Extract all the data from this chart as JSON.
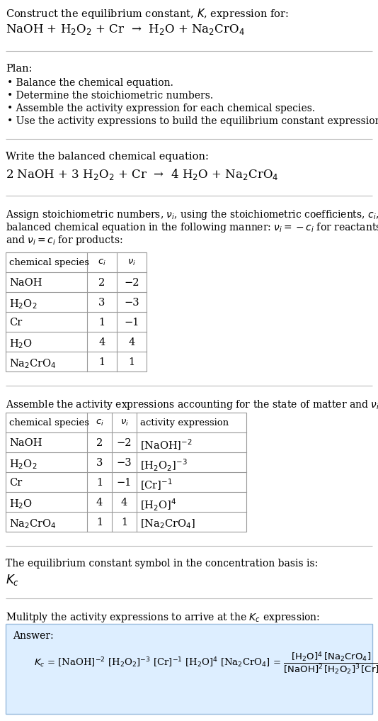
{
  "title_line1": "Construct the equilibrium constant, $K$, expression for:",
  "title_line2": "NaOH + H$_2$O$_2$ + Cr  →  H$_2$O + Na$_2$CrO$_4$",
  "plan_header": "Plan:",
  "plan_bullets": [
    "• Balance the chemical equation.",
    "• Determine the stoichiometric numbers.",
    "• Assemble the activity expression for each chemical species.",
    "• Use the activity expressions to build the equilibrium constant expression."
  ],
  "balanced_header": "Write the balanced chemical equation:",
  "balanced_eq": "2 NaOH + 3 H$_2$O$_2$ + Cr  →  4 H$_2$O + Na$_2$CrO$_4$",
  "stoich_text": [
    "Assign stoichiometric numbers, $\\nu_i$, using the stoichiometric coefficients, $c_i$, from the",
    "balanced chemical equation in the following manner: $\\nu_i = -c_i$ for reactants",
    "and $\\nu_i = c_i$ for products:"
  ],
  "table1_headers": [
    "chemical species",
    "$c_i$",
    "$\\nu_i$"
  ],
  "table1_rows": [
    [
      "NaOH",
      "2",
      "−2"
    ],
    [
      "H$_2$O$_2$",
      "3",
      "−3"
    ],
    [
      "Cr",
      "1",
      "−1"
    ],
    [
      "H$_2$O",
      "4",
      "4"
    ],
    [
      "Na$_2$CrO$_4$",
      "1",
      "1"
    ]
  ],
  "activity_header": "Assemble the activity expressions accounting for the state of matter and $\\nu_i$:",
  "table2_headers": [
    "chemical species",
    "$c_i$",
    "$\\nu_i$",
    "activity expression"
  ],
  "table2_rows": [
    [
      "NaOH",
      "2",
      "−2",
      "[NaOH]$^{-2}$"
    ],
    [
      "H$_2$O$_2$",
      "3",
      "−3",
      "[H$_2$O$_2$]$^{-3}$"
    ],
    [
      "Cr",
      "1",
      "−1",
      "[Cr]$^{-1}$"
    ],
    [
      "H$_2$O",
      "4",
      "4",
      "[H$_2$O]$^4$"
    ],
    [
      "Na$_2$CrO$_4$",
      "1",
      "1",
      "[Na$_2$CrO$_4$]"
    ]
  ],
  "kc_symbol_header": "The equilibrium constant symbol in the concentration basis is:",
  "kc_symbol": "$K_c$",
  "multiply_header": "Mulitply the activity expressions to arrive at the $K_c$ expression:",
  "answer_label": "Answer:",
  "bg_color": "#ffffff",
  "answer_box_color": "#ddeeff",
  "answer_box_border": "#99bbdd",
  "separator_color": "#bbbbbb",
  "table_border_color": "#999999"
}
